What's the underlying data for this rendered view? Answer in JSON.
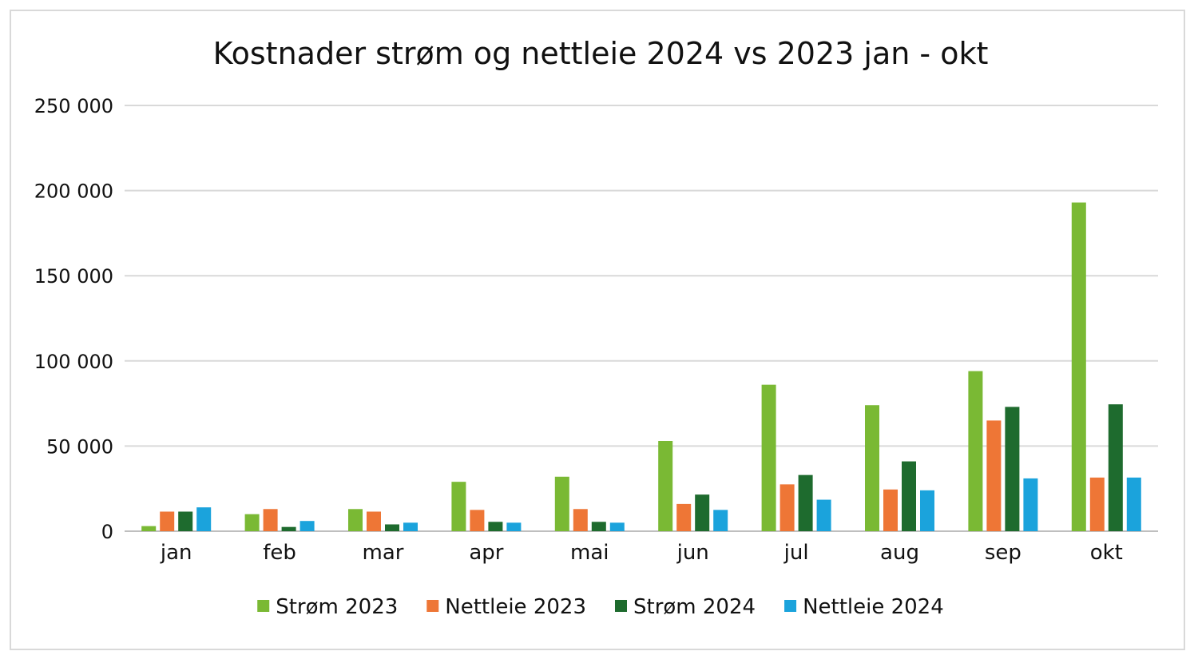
{
  "chart_data": {
    "type": "bar",
    "title": "Kostnader strøm og nettleie 2024 vs 2023 jan - okt",
    "xlabel": "",
    "ylabel": "",
    "ylim": [
      0,
      250000
    ],
    "yticks": [
      0,
      50000,
      100000,
      150000,
      200000,
      250000
    ],
    "ytick_labels": [
      "0",
      "50 000",
      "100 000",
      "150 000",
      "200 000",
      "250 000"
    ],
    "grid": true,
    "legend_position": "bottom",
    "categories": [
      "jan",
      "feb",
      "mar",
      "apr",
      "mai",
      "jun",
      "jul",
      "aug",
      "sep",
      "okt"
    ],
    "series": [
      {
        "name": "Strøm 2023",
        "color": "#7ab934",
        "values": [
          3000,
          10000,
          13000,
          29000,
          32000,
          53000,
          86000,
          74000,
          94000,
          193000
        ]
      },
      {
        "name": "Nettleie 2023",
        "color": "#ee7636",
        "values": [
          11500,
          13000,
          11500,
          12500,
          13000,
          16000,
          27500,
          24500,
          65000,
          31500
        ]
      },
      {
        "name": "Strøm 2024",
        "color": "#1e6b2e",
        "values": [
          11500,
          2500,
          4000,
          5500,
          5500,
          21500,
          33000,
          41000,
          73000,
          74500
        ]
      },
      {
        "name": "Nettleie 2024",
        "color": "#1ba3dc",
        "values": [
          14000,
          6000,
          5000,
          5000,
          5000,
          12500,
          18500,
          24000,
          31000,
          31500
        ]
      }
    ]
  }
}
